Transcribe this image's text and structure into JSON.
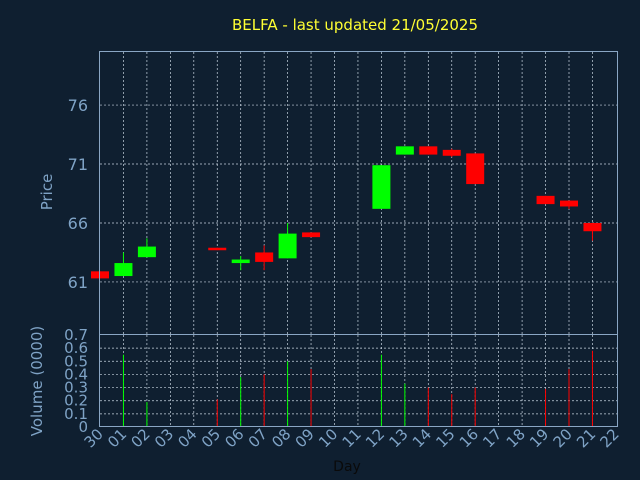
{
  "title": "BELFA - last updated 21/05/2025",
  "chart_data": [
    {
      "type": "candlestick",
      "ylabel": "Price",
      "ylim": [
        56.5,
        80.5
      ],
      "yticks": [
        61,
        66,
        71,
        76
      ],
      "grid": true,
      "x_days": [
        "30",
        "01",
        "02",
        "03",
        "04",
        "05",
        "06",
        "07",
        "08",
        "09",
        "10",
        "11",
        "12",
        "13",
        "14",
        "15",
        "16",
        "17",
        "18",
        "19",
        "20",
        "21",
        "22"
      ],
      "candles": [
        {
          "day": "30",
          "open": 61.9,
          "close": 61.3,
          "high": 61.9,
          "low": 61.3,
          "color": "#ff0000"
        },
        {
          "day": "01",
          "open": 61.5,
          "close": 62.6,
          "high": 63.5,
          "low": 61.5,
          "color": "#00ff00"
        },
        {
          "day": "02",
          "open": 63.1,
          "close": 64.0,
          "high": 64.7,
          "low": 63.1,
          "color": "#00ff00"
        },
        {
          "day": "05",
          "open": 63.9,
          "close": 63.7,
          "high": 63.9,
          "low": 63.7,
          "color": "#ff0000"
        },
        {
          "day": "06",
          "open": 62.6,
          "close": 62.9,
          "high": 63.2,
          "low": 62.0,
          "color": "#00ff00"
        },
        {
          "day": "07",
          "open": 63.5,
          "close": 62.7,
          "high": 64.1,
          "low": 62.0,
          "color": "#ff0000"
        },
        {
          "day": "08",
          "open": 63.0,
          "close": 65.1,
          "high": 66.0,
          "low": 63.0,
          "color": "#00ff00"
        },
        {
          "day": "09",
          "open": 65.2,
          "close": 64.8,
          "high": 65.2,
          "low": 64.8,
          "color": "#ff0000"
        },
        {
          "day": "12",
          "open": 67.2,
          "close": 70.9,
          "high": 70.9,
          "low": 67.2,
          "color": "#00ff00"
        },
        {
          "day": "13",
          "open": 71.8,
          "close": 72.5,
          "high": 72.5,
          "low": 71.8,
          "color": "#00ff00"
        },
        {
          "day": "14",
          "open": 72.5,
          "close": 71.8,
          "high": 72.5,
          "low": 71.8,
          "color": "#ff0000"
        },
        {
          "day": "15",
          "open": 72.2,
          "close": 71.7,
          "high": 72.3,
          "low": 71.6,
          "color": "#ff0000"
        },
        {
          "day": "16",
          "open": 71.9,
          "close": 69.3,
          "high": 71.9,
          "low": 69.3,
          "color": "#ff0000"
        },
        {
          "day": "19",
          "open": 68.3,
          "close": 67.6,
          "high": 68.3,
          "low": 67.6,
          "color": "#ff0000"
        },
        {
          "day": "20",
          "open": 67.9,
          "close": 67.4,
          "high": 67.9,
          "low": 67.2,
          "color": "#ff0000"
        },
        {
          "day": "21",
          "open": 66.0,
          "close": 65.3,
          "high": 66.0,
          "low": 64.5,
          "color": "#ff0000"
        }
      ]
    },
    {
      "type": "bar",
      "xlabel": "Day",
      "ylabel": "Volume (0000)",
      "ylim": [
        0,
        0.7
      ],
      "yticks": [
        0,
        0.1,
        0.2,
        0.3,
        0.4,
        0.5,
        0.6,
        0.7
      ],
      "ytick_labels": [
        "0",
        "0.1",
        "0.2",
        "0.3",
        "0.4",
        "0.5",
        "0.6",
        "0.7"
      ],
      "grid": true,
      "bars": [
        {
          "day": "01",
          "value": 0.55,
          "color": "#00ff00"
        },
        {
          "day": "02",
          "value": 0.19,
          "color": "#00ff00"
        },
        {
          "day": "05",
          "value": 0.21,
          "color": "#ff0000"
        },
        {
          "day": "06",
          "value": 0.38,
          "color": "#00ff00"
        },
        {
          "day": "07",
          "value": 0.4,
          "color": "#ff0000"
        },
        {
          "day": "08",
          "value": 0.5,
          "color": "#00ff00"
        },
        {
          "day": "09",
          "value": 0.44,
          "color": "#ff0000"
        },
        {
          "day": "12",
          "value": 0.55,
          "color": "#00ff00"
        },
        {
          "day": "13",
          "value": 0.33,
          "color": "#00ff00"
        },
        {
          "day": "14",
          "value": 0.3,
          "color": "#ff0000"
        },
        {
          "day": "15",
          "value": 0.25,
          "color": "#ff0000"
        },
        {
          "day": "16",
          "value": 0.3,
          "color": "#ff0000"
        },
        {
          "day": "19",
          "value": 0.29,
          "color": "#ff0000"
        },
        {
          "day": "20",
          "value": 0.44,
          "color": "#ff0000"
        },
        {
          "day": "21",
          "value": 0.58,
          "color": "#ff0000"
        }
      ]
    }
  ]
}
